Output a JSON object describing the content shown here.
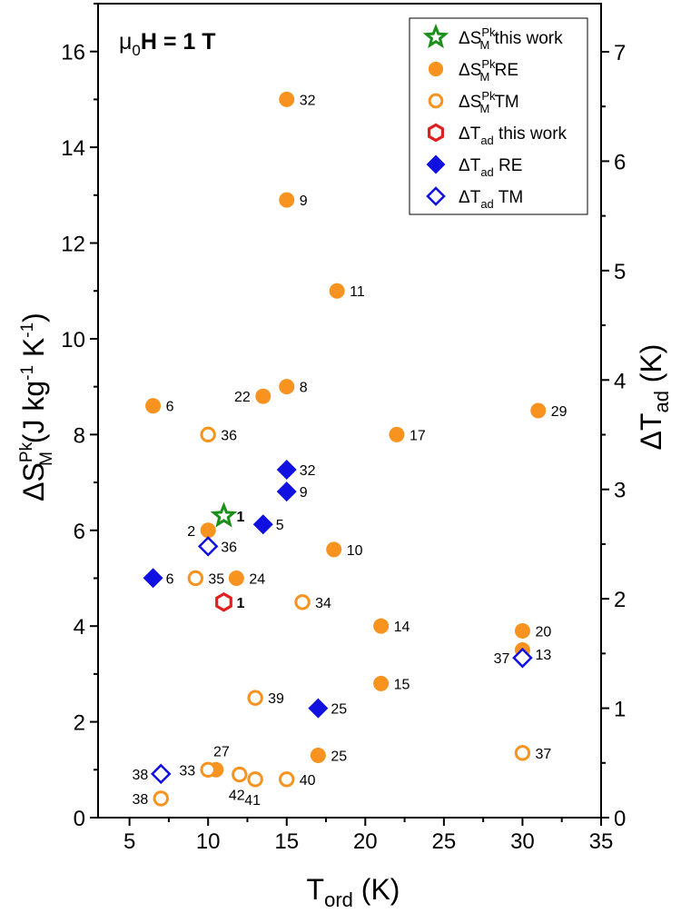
{
  "chart_data": {
    "type": "scatter",
    "field_label": {
      "prefix": "μ",
      "sub": "0",
      "H": "H",
      "rest": " = 1 T"
    },
    "xaxis": {
      "label": "T",
      "label_sub": "ord",
      "label_units": " (K)",
      "range": [
        3,
        35
      ],
      "ticks": [
        5,
        10,
        15,
        20,
        25,
        30,
        35
      ]
    },
    "yaxis_left": {
      "label": "ΔS",
      "label_sup": "Pk",
      "label_sub": "M",
      "label_units": " (J kg",
      "units_sup1": "-1",
      "units_mid": " K",
      "units_sup2": "-1",
      "units_end": ")",
      "range": [
        0,
        17
      ],
      "ticks": [
        0,
        2,
        4,
        6,
        8,
        10,
        12,
        14,
        16
      ]
    },
    "yaxis_right": {
      "label": "ΔT",
      "label_sub": "ad",
      "label_units": " (K)",
      "range": [
        0,
        7.44
      ],
      "ticks": [
        0,
        1,
        2,
        3,
        4,
        5,
        6,
        7
      ]
    },
    "colors": {
      "orange": "#f7931e",
      "green": "#1a8f1a",
      "red": "#e02020",
      "blue": "#1010e0"
    },
    "legend": [
      {
        "key": "dS_this",
        "main": "ΔS",
        "sup": "Pk",
        "sub": "M",
        "suffix": " this work"
      },
      {
        "key": "dS_RE",
        "main": "ΔS",
        "sup": "Pk",
        "sub": "M",
        "suffix": " RE"
      },
      {
        "key": "dS_TM",
        "main": "ΔS",
        "sup": "Pk",
        "sub": "M",
        "suffix": " TM"
      },
      {
        "key": "dT_this",
        "main": "ΔT",
        "sup": "",
        "sub": "ad",
        "suffix": " this work"
      },
      {
        "key": "dT_RE",
        "main": "ΔT",
        "sup": "",
        "sub": "ad",
        "suffix": " RE"
      },
      {
        "key": "dT_TM",
        "main": "ΔT",
        "sup": "",
        "sub": "ad",
        "suffix": " TM"
      }
    ],
    "series": [
      {
        "name": "ΔS this work",
        "key": "dS_this",
        "axis": "left",
        "marker": "star",
        "color": "#1a8f1a",
        "filled": false,
        "points": [
          {
            "x": 11,
            "y": 6.3,
            "label": "1",
            "bold": true
          }
        ]
      },
      {
        "name": "ΔS RE",
        "key": "dS_RE",
        "axis": "left",
        "marker": "circle",
        "color": "#f7931e",
        "filled": true,
        "points": [
          {
            "x": 15,
            "y": 15.0,
            "label": "32"
          },
          {
            "x": 15,
            "y": 12.9,
            "label": "9"
          },
          {
            "x": 18.2,
            "y": 11.0,
            "label": "11"
          },
          {
            "x": 6.5,
            "y": 8.6,
            "label": "6"
          },
          {
            "x": 13.5,
            "y": 8.8,
            "label": "22",
            "left": true
          },
          {
            "x": 15,
            "y": 9.0,
            "label": "8"
          },
          {
            "x": 22,
            "y": 8.0,
            "label": "17"
          },
          {
            "x": 31,
            "y": 8.5,
            "label": "29"
          },
          {
            "x": 10,
            "y": 6.0,
            "label": "2",
            "left": true
          },
          {
            "x": 18,
            "y": 5.6,
            "label": "10"
          },
          {
            "x": 11.8,
            "y": 5.0,
            "label": "24"
          },
          {
            "x": 21,
            "y": 4.0,
            "label": "14"
          },
          {
            "x": 30,
            "y": 3.9,
            "label": "20"
          },
          {
            "x": 30,
            "y": 3.5,
            "label": ""
          },
          {
            "x": 21,
            "y": 2.8,
            "label": "15"
          },
          {
            "x": 17,
            "y": 1.3,
            "label": "25"
          },
          {
            "x": 10.5,
            "y": 1.0,
            "label": "27",
            "above": true
          }
        ]
      },
      {
        "name": "ΔS TM",
        "key": "dS_TM",
        "axis": "left",
        "marker": "circle",
        "color": "#f7931e",
        "filled": false,
        "points": [
          {
            "x": 10,
            "y": 8.0,
            "label": "36"
          },
          {
            "x": 9.2,
            "y": 5.0,
            "label": "35"
          },
          {
            "x": 16,
            "y": 4.5,
            "label": "34"
          },
          {
            "x": 13,
            "y": 2.5,
            "label": "39"
          },
          {
            "x": 30,
            "y": 1.35,
            "label": "37"
          },
          {
            "x": 10,
            "y": 1.0,
            "label": "33",
            "left": true
          },
          {
            "x": 12,
            "y": 0.9,
            "label": "42",
            "below": true
          },
          {
            "x": 13,
            "y": 0.8,
            "label": "41",
            "below": true
          },
          {
            "x": 15,
            "y": 0.8,
            "label": "40"
          },
          {
            "x": 7,
            "y": 0.4,
            "label": "38",
            "left": true
          }
        ]
      },
      {
        "name": "ΔT this work",
        "key": "dT_this",
        "axis": "right",
        "marker": "hexagon",
        "color": "#e02020",
        "filled": false,
        "points": [
          {
            "x": 11,
            "y": 1.97,
            "label": "1",
            "bold": true
          }
        ]
      },
      {
        "name": "ΔT RE",
        "key": "dT_RE",
        "axis": "right",
        "marker": "diamond",
        "color": "#1010e0",
        "filled": true,
        "points": [
          {
            "x": 15,
            "y": 3.18,
            "label": "32"
          },
          {
            "x": 15,
            "y": 2.98,
            "label": "9"
          },
          {
            "x": 13.5,
            "y": 2.68,
            "label": "5"
          },
          {
            "x": 6.5,
            "y": 2.19,
            "label": "6"
          },
          {
            "x": 17,
            "y": 1.0,
            "label": "25"
          }
        ]
      },
      {
        "name": "ΔT TM",
        "key": "dT_TM",
        "axis": "right",
        "marker": "diamond",
        "color": "#1010e0",
        "filled": false,
        "points": [
          {
            "x": 10,
            "y": 2.48,
            "label": "36"
          },
          {
            "x": 30,
            "y": 1.46,
            "label": "37",
            "left": true
          },
          {
            "x": 7,
            "y": 0.4,
            "label": "38",
            "left": true
          }
        ]
      }
    ],
    "extra_labels": [
      {
        "x": 30,
        "y": 1.46,
        "axis": "right",
        "label": "13"
      }
    ]
  }
}
